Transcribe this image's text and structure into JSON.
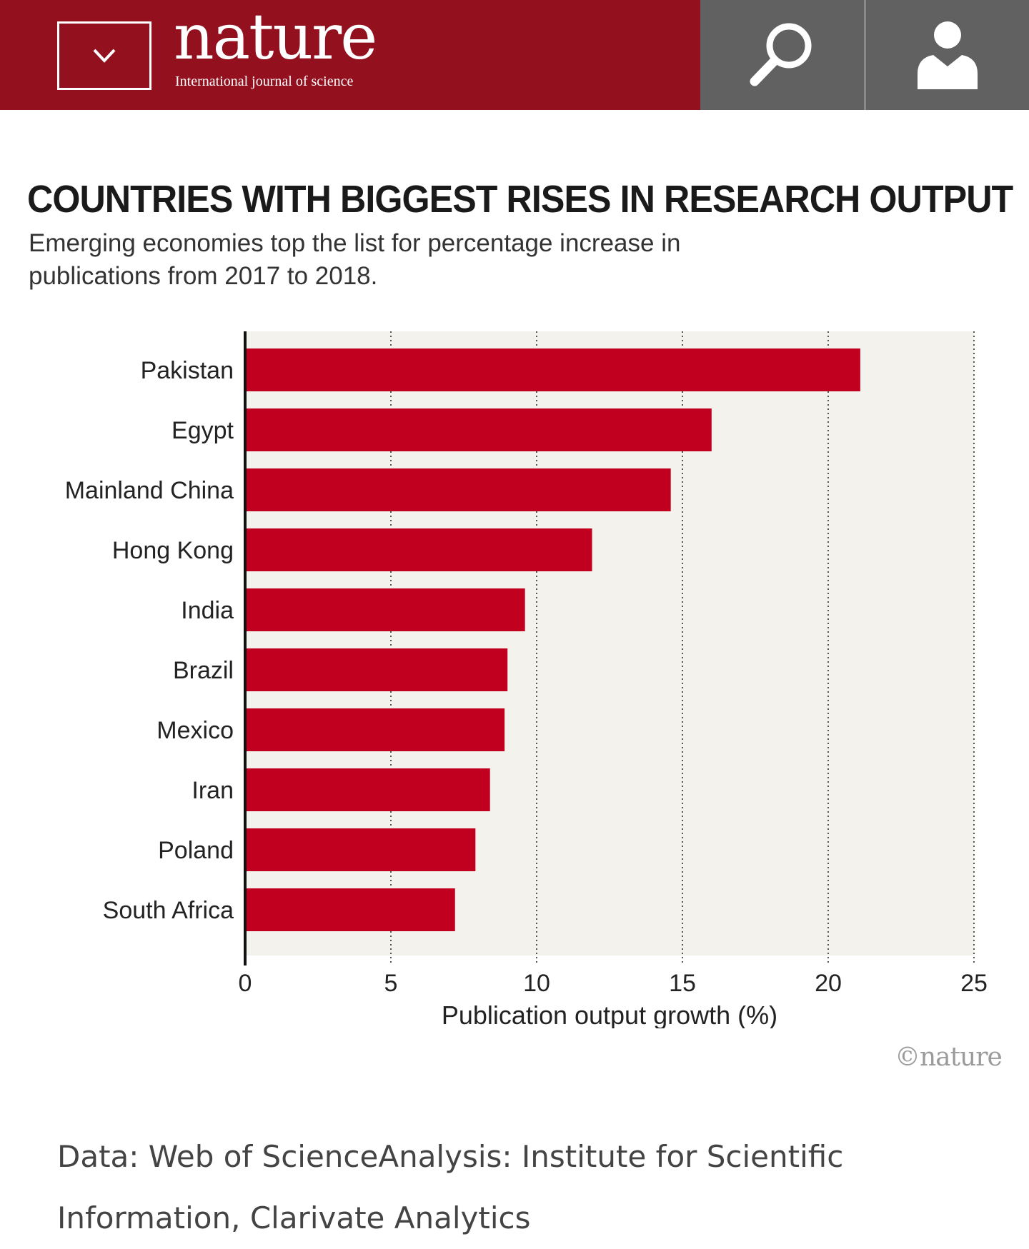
{
  "header": {
    "logo": "nature",
    "tagline": "International journal of science",
    "menu_icon": "chevron-down-icon",
    "search_icon": "search-icon",
    "account_icon": "user-icon",
    "brand_color": "#93101f",
    "icon_panel_color": "#616161"
  },
  "chart_data": {
    "type": "bar",
    "orientation": "horizontal",
    "title": "COUNTRIES WITH BIGGEST RISES IN RESEARCH OUTPUT",
    "subtitle": "Emerging economies top the list for percentage increase in publications from 2017 to 2018.",
    "categories": [
      "Pakistan",
      "Egypt",
      "Mainland China",
      "Hong Kong",
      "India",
      "Brazil",
      "Mexico",
      "Iran",
      "Poland",
      "South Africa"
    ],
    "values": [
      21.1,
      16.0,
      14.6,
      11.9,
      9.6,
      9.0,
      8.9,
      8.4,
      7.9,
      7.2
    ],
    "xlabel": "Publication output growth (%)",
    "ylabel": "",
    "xlim": [
      0,
      25
    ],
    "xticks": [
      "0",
      "5",
      "10",
      "15",
      "20",
      "25"
    ],
    "grid": "vertical dotted",
    "bar_color": "#c1001f",
    "plot_background": "#f4f2ec"
  },
  "credit": "©nature",
  "source_note": "Data: Web of ScienceAnalysis: Institute for Scientific Information, Clarivate Analytics"
}
